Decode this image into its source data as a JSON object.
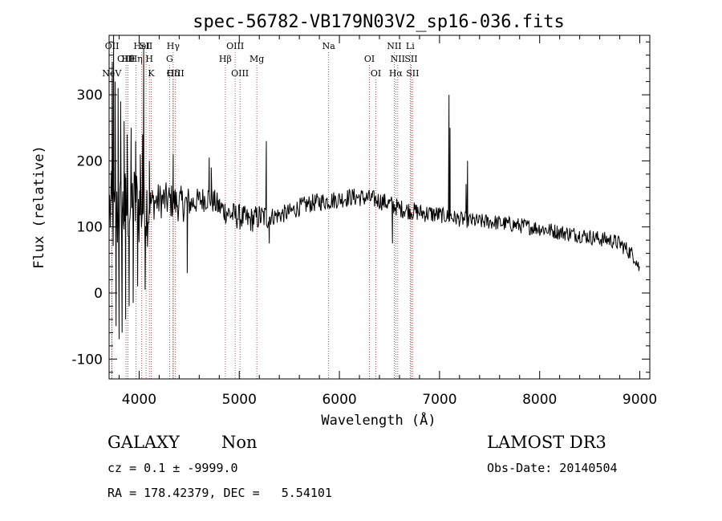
{
  "chart_data": {
    "type": "line",
    "title": "spec-56782-VB179N03V2_sp16-036.fits",
    "xlabel": "Wavelength (Å)",
    "ylabel": "Flux (relative)",
    "xlim": [
      3700,
      9100
    ],
    "ylim": [
      -130,
      390
    ],
    "xticks": [
      4000,
      5000,
      6000,
      7000,
      8000,
      9000
    ],
    "yticks": [
      -100,
      0,
      100,
      200,
      300
    ],
    "spectrum_nodes": [
      [
        3700,
        130
      ],
      [
        3750,
        110
      ],
      [
        3800,
        120
      ],
      [
        3850,
        125
      ],
      [
        3900,
        130
      ],
      [
        3950,
        135
      ],
      [
        4000,
        130
      ],
      [
        4100,
        135
      ],
      [
        4200,
        140
      ],
      [
        4300,
        140
      ],
      [
        4400,
        135
      ],
      [
        4500,
        135
      ],
      [
        4600,
        140
      ],
      [
        4700,
        145
      ],
      [
        4800,
        130
      ],
      [
        4900,
        120
      ],
      [
        5000,
        115
      ],
      [
        5100,
        110
      ],
      [
        5200,
        115
      ],
      [
        5300,
        115
      ],
      [
        5400,
        118
      ],
      [
        5500,
        122
      ],
      [
        5600,
        130
      ],
      [
        5700,
        135
      ],
      [
        5800,
        138
      ],
      [
        5900,
        140
      ],
      [
        6000,
        142
      ],
      [
        6100,
        145
      ],
      [
        6200,
        145
      ],
      [
        6300,
        143
      ],
      [
        6400,
        140
      ],
      [
        6500,
        135
      ],
      [
        6600,
        128
      ],
      [
        6700,
        125
      ],
      [
        6800,
        122
      ],
      [
        6900,
        120
      ],
      [
        7000,
        118
      ],
      [
        7100,
        115
      ],
      [
        7200,
        112
      ],
      [
        7300,
        110
      ],
      [
        7400,
        108
      ],
      [
        7500,
        108
      ],
      [
        7600,
        106
      ],
      [
        7700,
        104
      ],
      [
        7800,
        102
      ],
      [
        7900,
        100
      ],
      [
        8000,
        98
      ],
      [
        8100,
        95
      ],
      [
        8200,
        92
      ],
      [
        8300,
        90
      ],
      [
        8400,
        88
      ],
      [
        8500,
        85
      ],
      [
        8600,
        82
      ],
      [
        8700,
        80
      ],
      [
        8800,
        75
      ],
      [
        8900,
        62
      ],
      [
        8950,
        55
      ],
      [
        9000,
        35
      ]
    ],
    "spectrum_spikes": [
      [
        3732,
        350
      ],
      [
        3745,
        390
      ],
      [
        3760,
        320
      ],
      [
        3770,
        -50
      ],
      [
        3790,
        310
      ],
      [
        3800,
        -70
      ],
      [
        3815,
        290
      ],
      [
        3830,
        -60
      ],
      [
        3850,
        260
      ],
      [
        3865,
        -40
      ],
      [
        3880,
        240
      ],
      [
        3900,
        -20
      ],
      [
        3920,
        250
      ],
      [
        3940,
        -15
      ],
      [
        3965,
        230
      ],
      [
        3985,
        10
      ],
      [
        4012,
        210
      ],
      [
        4035,
        240
      ],
      [
        4045,
        370
      ],
      [
        4060,
        5
      ],
      [
        4102,
        200
      ],
      [
        4340,
        210
      ],
      [
        4480,
        30
      ],
      [
        4700,
        205
      ],
      [
        4720,
        190
      ],
      [
        5270,
        230
      ],
      [
        5300,
        75
      ],
      [
        6530,
        75
      ],
      [
        7095,
        300
      ],
      [
        7105,
        250
      ],
      [
        7115,
        120
      ],
      [
        7265,
        165
      ],
      [
        7280,
        200
      ]
    ],
    "lines": [
      {
        "label": "NeV",
        "wave": 3726,
        "row": 3
      },
      {
        "label": "OII",
        "wave": 3729,
        "row": 1
      },
      {
        "label": "OIII",
        "wave": 3869,
        "row": 2
      },
      {
        "label": "Hθ",
        "wave": 3889,
        "row": 2
      },
      {
        "label": "Hη",
        "wave": 3970,
        "row": 2
      },
      {
        "label": "HeI",
        "wave": 4026,
        "row": 1
      },
      {
        "label": "H",
        "wave": 4102,
        "row": 2
      },
      {
        "label": "K",
        "wave": 4120,
        "row": 3
      },
      {
        "label": "SII",
        "wave": 4069,
        "row": 1
      },
      {
        "label": "Hδ",
        "wave": 4340,
        "row": 3
      },
      {
        "label": "Hγ",
        "wave": 4340,
        "row": 1
      },
      {
        "label": "G",
        "wave": 4304,
        "row": 2
      },
      {
        "label": "OIII",
        "wave": 4363,
        "row": 3
      },
      {
        "label": "Hβ",
        "wave": 4861,
        "row": 2
      },
      {
        "label": "OIII",
        "wave": 4959,
        "row": 1
      },
      {
        "label": "OIII",
        "wave": 5007,
        "row": 3
      },
      {
        "label": "Mg",
        "wave": 5175,
        "row": 2
      },
      {
        "label": "Na",
        "wave": 5893,
        "row": 1
      },
      {
        "label": "OI",
        "wave": 6300,
        "row": 2
      },
      {
        "label": "OI",
        "wave": 6364,
        "row": 3
      },
      {
        "label": "NII",
        "wave": 6548,
        "row": 1
      },
      {
        "label": "NII",
        "wave": 6583,
        "row": 2
      },
      {
        "label": "Hα",
        "wave": 6563,
        "row": 3
      },
      {
        "label": "Li",
        "wave": 6707,
        "row": 1
      },
      {
        "label": "SII",
        "wave": 6716,
        "row": 2
      },
      {
        "label": "SII",
        "wave": 6731,
        "row": 3
      }
    ]
  },
  "info": {
    "class": "GALAXY",
    "subclass": "Non",
    "survey": "LAMOST DR3",
    "cz": "cz = 0.1 ± -9999.0",
    "obs_date": "Obs-Date: 20140504",
    "radec": "RA = 178.42379, DEC =   5.54101"
  }
}
